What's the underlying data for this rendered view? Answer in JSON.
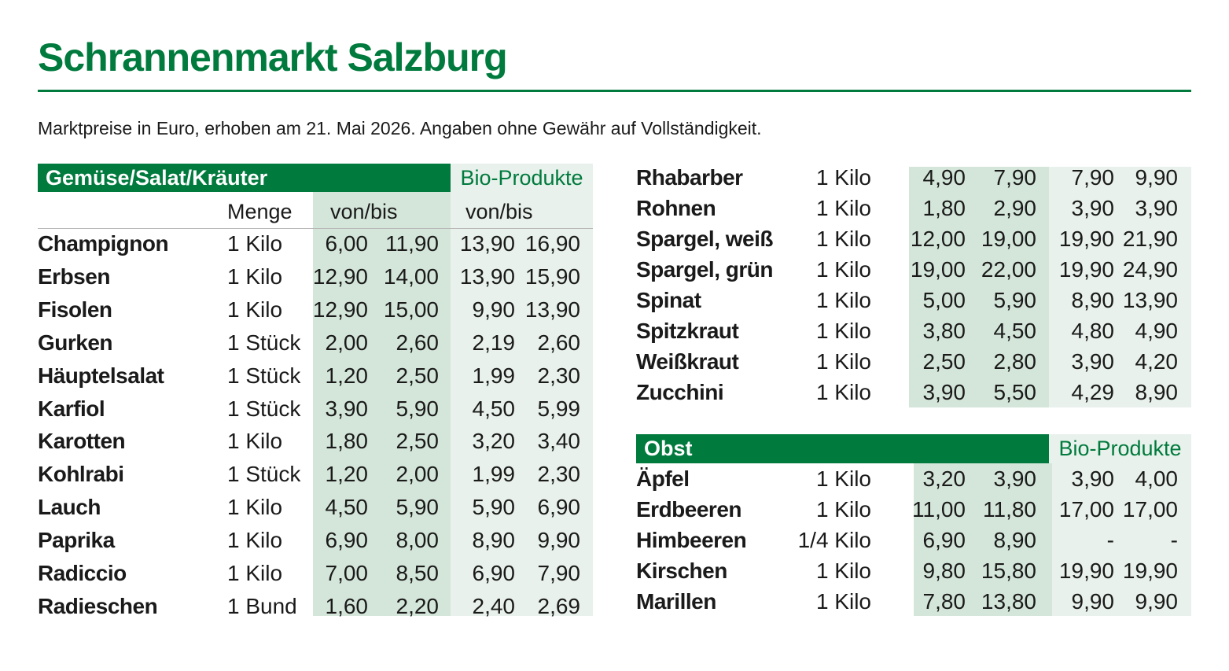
{
  "title": "Schrannenmarkt Salzburg",
  "subtitle": "Marktpreise in Euro, erhoben am 21. Mai 2026. Angaben ohne Gewähr auf Vollständigkeit.",
  "colors": {
    "accent": "#007a3d",
    "band_conv": "#d4e6da",
    "band_bio": "#e8f1eb"
  },
  "vegetables": {
    "heading": "Gemüse/Salat/Kräuter",
    "bio_heading": "Bio-Produkte",
    "col_menge": "Menge",
    "col_conv": "von/bis",
    "col_bio": "von/bis",
    "rows": [
      {
        "name": "Champignon",
        "unit": "1 Kilo",
        "von": "6,00",
        "bis": "11,90",
        "bio_von": "13,90",
        "bio_bis": "16,90"
      },
      {
        "name": "Erbsen",
        "unit": "1 Kilo",
        "von": "12,90",
        "bis": "14,00",
        "bio_von": "13,90",
        "bio_bis": "15,90"
      },
      {
        "name": "Fisolen",
        "unit": "1 Kilo",
        "von": "12,90",
        "bis": "15,00",
        "bio_von": "9,90",
        "bio_bis": "13,90"
      },
      {
        "name": "Gurken",
        "unit": "1 Stück",
        "von": "2,00",
        "bis": "2,60",
        "bio_von": "2,19",
        "bio_bis": "2,60"
      },
      {
        "name": "Häuptelsalat",
        "unit": "1 Stück",
        "von": "1,20",
        "bis": "2,50",
        "bio_von": "1,99",
        "bio_bis": "2,30"
      },
      {
        "name": "Karfiol",
        "unit": "1 Stück",
        "von": "3,90",
        "bis": "5,90",
        "bio_von": "4,50",
        "bio_bis": "5,99"
      },
      {
        "name": "Karotten",
        "unit": "1 Kilo",
        "von": "1,80",
        "bis": "2,50",
        "bio_von": "3,20",
        "bio_bis": "3,40"
      },
      {
        "name": "Kohlrabi",
        "unit": "1 Stück",
        "von": "1,20",
        "bis": "2,00",
        "bio_von": "1,99",
        "bio_bis": "2,30"
      },
      {
        "name": "Lauch",
        "unit": "1 Kilo",
        "von": "4,50",
        "bis": "5,90",
        "bio_von": "5,90",
        "bio_bis": "6,90"
      },
      {
        "name": "Paprika",
        "unit": "1 Kilo",
        "von": "6,90",
        "bis": "8,00",
        "bio_von": "8,90",
        "bio_bis": "9,90"
      },
      {
        "name": "Radiccio",
        "unit": "1 Kilo",
        "von": "7,00",
        "bis": "8,50",
        "bio_von": "6,90",
        "bio_bis": "7,90"
      },
      {
        "name": "Radieschen",
        "unit": "1 Bund",
        "von": "1,60",
        "bis": "2,20",
        "bio_von": "2,40",
        "bio_bis": "2,69"
      }
    ]
  },
  "vegetables_continued": {
    "rows": [
      {
        "name": "Rhabarber",
        "unit": "1 Kilo",
        "von": "4,90",
        "bis": "7,90",
        "bio_von": "7,90",
        "bio_bis": "9,90"
      },
      {
        "name": "Rohnen",
        "unit": "1 Kilo",
        "von": "1,80",
        "bis": "2,90",
        "bio_von": "3,90",
        "bio_bis": "3,90"
      },
      {
        "name": "Spargel, weiß",
        "unit": "1 Kilo",
        "von": "12,00",
        "bis": "19,00",
        "bio_von": "19,90",
        "bio_bis": "21,90"
      },
      {
        "name": "Spargel, grün",
        "unit": "1 Kilo",
        "von": "19,00",
        "bis": "22,00",
        "bio_von": "19,90",
        "bio_bis": "24,90"
      },
      {
        "name": "Spinat",
        "unit": "1 Kilo",
        "von": "5,00",
        "bis": "5,90",
        "bio_von": "8,90",
        "bio_bis": "13,90"
      },
      {
        "name": "Spitzkraut",
        "unit": "1 Kilo",
        "von": "3,80",
        "bis": "4,50",
        "bio_von": "4,80",
        "bio_bis": "4,90"
      },
      {
        "name": "Weißkraut",
        "unit": "1 Kilo",
        "von": "2,50",
        "bis": "2,80",
        "bio_von": "3,90",
        "bio_bis": "4,20"
      },
      {
        "name": "Zucchini",
        "unit": "1 Kilo",
        "von": "3,90",
        "bis": "5,50",
        "bio_von": "4,29",
        "bio_bis": "8,90"
      }
    ]
  },
  "fruit": {
    "heading": "Obst",
    "bio_heading": "Bio-Produkte",
    "rows": [
      {
        "name": "Äpfel",
        "unit": "1 Kilo",
        "von": "3,20",
        "bis": "3,90",
        "bio_von": "3,90",
        "bio_bis": "4,00"
      },
      {
        "name": "Erdbeeren",
        "unit": "1 Kilo",
        "von": "11,00",
        "bis": "11,80",
        "bio_von": "17,00",
        "bio_bis": "17,00"
      },
      {
        "name": "Himbeeren",
        "unit": "1/4 Kilo",
        "von": "6,90",
        "bis": "8,90",
        "bio_von": "-",
        "bio_bis": "-"
      },
      {
        "name": "Kirschen",
        "unit": "1 Kilo",
        "von": "9,80",
        "bis": "15,80",
        "bio_von": "19,90",
        "bio_bis": "19,90"
      },
      {
        "name": "Marillen",
        "unit": "1 Kilo",
        "von": "7,80",
        "bis": "13,80",
        "bio_von": "9,90",
        "bio_bis": "9,90"
      }
    ]
  }
}
